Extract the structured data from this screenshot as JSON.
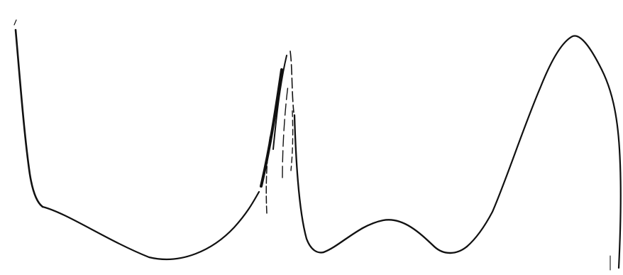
{
  "drawing": {
    "background_color": "#ffffff",
    "line_color": "#111111",
    "segments": [
      "left-descent",
      "valley-curve",
      "spike-rise",
      "spike-strands",
      "middle-dip-and-bump",
      "rise-to-peak",
      "right-descent"
    ]
  }
}
